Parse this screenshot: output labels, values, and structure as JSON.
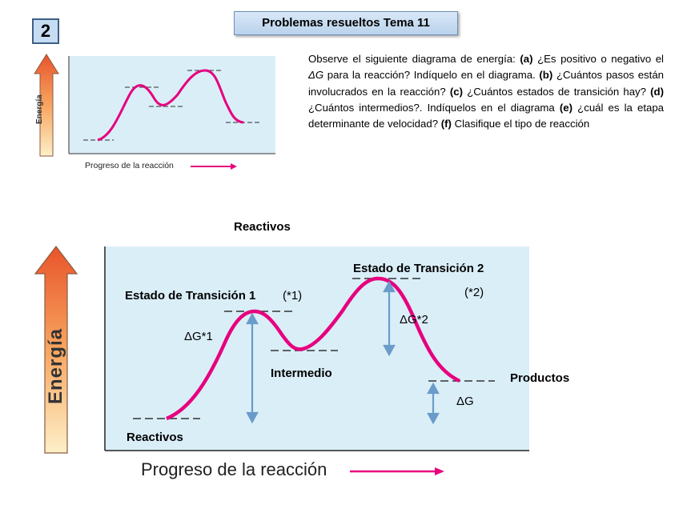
{
  "header": {
    "problem_number": "2",
    "title": "Problemas resueltos Tema 11"
  },
  "question": {
    "intro": "Observe el siguiente diagrama de energía:",
    "a_tag": "(a)",
    "a_text": "¿Es positivo o negativo el ",
    "a_symbol": "ΔG",
    "a_text2": " para la reacción? Indíquelo en el diagrama.",
    "b_tag": "(b)",
    "b_text": "¿Cuántos pasos están involucrados en la reacción?",
    "c_tag": "(c)",
    "c_text": "¿Cuántos estados de transición hay?",
    "d_tag": "(d)",
    "d_text": "¿Cuántos intermedios?. Indíquelos en el diagrama",
    "e_tag": "(e)",
    "e_text": "¿cuál es la etapa determinante de velocidad?",
    "f_tag": "(f)",
    "f_text": "Clasifique el tipo de reacción"
  },
  "small_diagram": {
    "y_axis": "Energía",
    "x_axis": "Progreso de la reacción"
  },
  "large_diagram": {
    "top_label": "Reactivos",
    "y_axis": "Energía",
    "x_axis": "Progreso de la reacción",
    "ts1": "Estado de Transición 1",
    "ts1_note": "(*1)",
    "ts2": "Estado de Transición 2",
    "ts2_note": "(*2)",
    "dg1": "ΔG*1",
    "dg2": "ΔG*2",
    "intermediate": "Intermedio",
    "products": "Productos",
    "dg": "ΔG",
    "reactants": "Reactivos"
  },
  "colors": {
    "curve": "#e6007e",
    "panel": "#daeef8",
    "axis_arrow_top": "#e8542a",
    "axis_arrow_bottom": "#fdf0c8",
    "delta_arrow": "#6a9bc9",
    "title_box": "#c6dcf2"
  }
}
